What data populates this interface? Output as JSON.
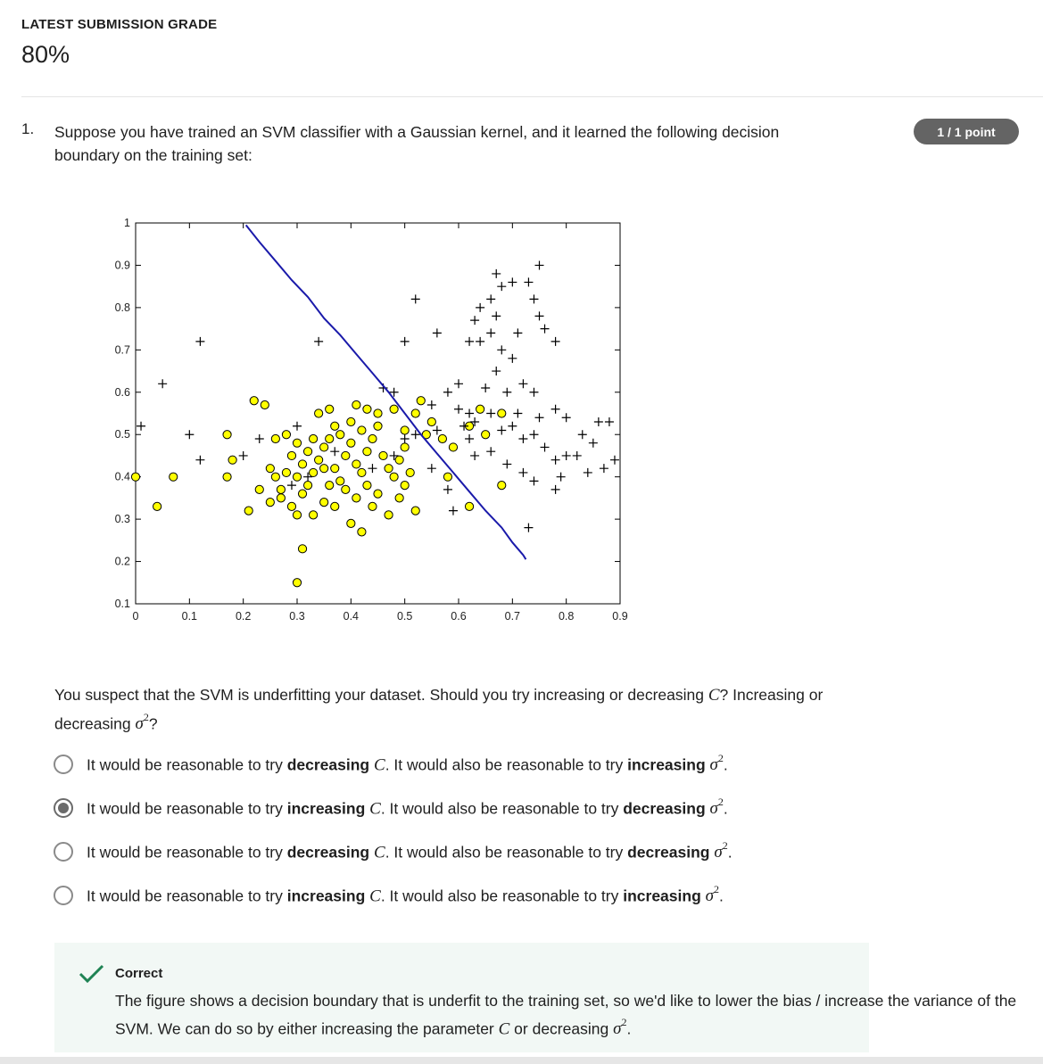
{
  "header": {
    "grade_label": "LATEST SUBMISSION GRADE",
    "grade_value": "80%"
  },
  "question": {
    "number": "1.",
    "text": "Suppose you have trained an SVM classifier with a Gaussian kernel, and it learned the following decision boundary on the training set:",
    "points_badge": "1 / 1 point"
  },
  "chart_data": {
    "type": "scatter",
    "xlim": [
      0,
      0.9
    ],
    "ylim": [
      0.1,
      1
    ],
    "x_ticks": [
      "0",
      "0.1",
      "0.2",
      "0.3",
      "0.4",
      "0.5",
      "0.6",
      "0.7",
      "0.8",
      "0.9"
    ],
    "y_ticks": [
      "0.1",
      "0.2",
      "0.3",
      "0.4",
      "0.5",
      "0.6",
      "0.7",
      "0.8",
      "0.9",
      "1"
    ],
    "negative_color": "#ffff00",
    "positive_color": "#000000",
    "boundary_color": "#1a1aaa",
    "boundary": [
      [
        0.205,
        0.995
      ],
      [
        0.23,
        0.955
      ],
      [
        0.26,
        0.91
      ],
      [
        0.29,
        0.865
      ],
      [
        0.32,
        0.825
      ],
      [
        0.35,
        0.775
      ],
      [
        0.38,
        0.735
      ],
      [
        0.41,
        0.69
      ],
      [
        0.44,
        0.645
      ],
      [
        0.47,
        0.6
      ],
      [
        0.5,
        0.55
      ],
      [
        0.53,
        0.5
      ],
      [
        0.56,
        0.455
      ],
      [
        0.59,
        0.41
      ],
      [
        0.62,
        0.365
      ],
      [
        0.65,
        0.32
      ],
      [
        0.68,
        0.28
      ],
      [
        0.7,
        0.245
      ],
      [
        0.72,
        0.215
      ],
      [
        0.725,
        0.205
      ]
    ],
    "negative_points": [
      [
        0.0,
        0.4
      ],
      [
        0.07,
        0.4
      ],
      [
        0.04,
        0.33
      ],
      [
        0.17,
        0.5
      ],
      [
        0.17,
        0.4
      ],
      [
        0.18,
        0.44
      ],
      [
        0.21,
        0.32
      ],
      [
        0.22,
        0.58
      ],
      [
        0.24,
        0.57
      ],
      [
        0.26,
        0.49
      ],
      [
        0.28,
        0.5
      ],
      [
        0.29,
        0.45
      ],
      [
        0.3,
        0.48
      ],
      [
        0.25,
        0.42
      ],
      [
        0.26,
        0.4
      ],
      [
        0.27,
        0.37
      ],
      [
        0.28,
        0.41
      ],
      [
        0.3,
        0.4
      ],
      [
        0.31,
        0.43
      ],
      [
        0.32,
        0.46
      ],
      [
        0.32,
        0.38
      ],
      [
        0.33,
        0.41
      ],
      [
        0.34,
        0.44
      ],
      [
        0.35,
        0.47
      ],
      [
        0.36,
        0.49
      ],
      [
        0.37,
        0.52
      ],
      [
        0.37,
        0.42
      ],
      [
        0.38,
        0.39
      ],
      [
        0.39,
        0.45
      ],
      [
        0.4,
        0.48
      ],
      [
        0.41,
        0.43
      ],
      [
        0.42,
        0.41
      ],
      [
        0.43,
        0.46
      ],
      [
        0.44,
        0.49
      ],
      [
        0.45,
        0.52
      ],
      [
        0.46,
        0.45
      ],
      [
        0.47,
        0.42
      ],
      [
        0.48,
        0.4
      ],
      [
        0.49,
        0.44
      ],
      [
        0.5,
        0.47
      ],
      [
        0.5,
        0.38
      ],
      [
        0.51,
        0.41
      ],
      [
        0.52,
        0.55
      ],
      [
        0.54,
        0.5
      ],
      [
        0.55,
        0.53
      ],
      [
        0.57,
        0.49
      ],
      [
        0.58,
        0.4
      ],
      [
        0.59,
        0.47
      ],
      [
        0.62,
        0.52
      ],
      [
        0.64,
        0.56
      ],
      [
        0.65,
        0.5
      ],
      [
        0.68,
        0.55
      ],
      [
        0.68,
        0.38
      ],
      [
        0.62,
        0.33
      ],
      [
        0.27,
        0.35
      ],
      [
        0.29,
        0.33
      ],
      [
        0.31,
        0.36
      ],
      [
        0.33,
        0.31
      ],
      [
        0.35,
        0.34
      ],
      [
        0.37,
        0.33
      ],
      [
        0.39,
        0.37
      ],
      [
        0.41,
        0.35
      ],
      [
        0.43,
        0.38
      ],
      [
        0.45,
        0.36
      ],
      [
        0.47,
        0.31
      ],
      [
        0.49,
        0.35
      ],
      [
        0.52,
        0.32
      ],
      [
        0.44,
        0.33
      ],
      [
        0.4,
        0.29
      ],
      [
        0.42,
        0.27
      ],
      [
        0.31,
        0.23
      ],
      [
        0.3,
        0.15
      ],
      [
        0.23,
        0.37
      ],
      [
        0.25,
        0.34
      ],
      [
        0.3,
        0.31
      ],
      [
        0.34,
        0.55
      ],
      [
        0.36,
        0.56
      ],
      [
        0.41,
        0.57
      ],
      [
        0.43,
        0.56
      ],
      [
        0.45,
        0.55
      ],
      [
        0.48,
        0.56
      ],
      [
        0.5,
        0.51
      ],
      [
        0.53,
        0.58
      ],
      [
        0.38,
        0.5
      ],
      [
        0.4,
        0.53
      ],
      [
        0.42,
        0.51
      ],
      [
        0.35,
        0.42
      ],
      [
        0.36,
        0.38
      ],
      [
        0.33,
        0.49
      ]
    ],
    "positive_points": [
      [
        0.05,
        0.62
      ],
      [
        0.12,
        0.72
      ],
      [
        0.01,
        0.52
      ],
      [
        0.1,
        0.5
      ],
      [
        0.12,
        0.44
      ],
      [
        0.2,
        0.45
      ],
      [
        0.23,
        0.49
      ],
      [
        0.3,
        0.52
      ],
      [
        0.34,
        0.72
      ],
      [
        0.46,
        0.61
      ],
      [
        0.48,
        0.6
      ],
      [
        0.5,
        0.72
      ],
      [
        0.52,
        0.82
      ],
      [
        0.56,
        0.74
      ],
      [
        0.58,
        0.6
      ],
      [
        0.6,
        0.62
      ],
      [
        0.6,
        0.56
      ],
      [
        0.61,
        0.52
      ],
      [
        0.62,
        0.49
      ],
      [
        0.63,
        0.45
      ],
      [
        0.62,
        0.72
      ],
      [
        0.63,
        0.77
      ],
      [
        0.64,
        0.8
      ],
      [
        0.66,
        0.82
      ],
      [
        0.67,
        0.78
      ],
      [
        0.68,
        0.85
      ],
      [
        0.67,
        0.88
      ],
      [
        0.7,
        0.86
      ],
      [
        0.71,
        0.74
      ],
      [
        0.73,
        0.86
      ],
      [
        0.74,
        0.82
      ],
      [
        0.75,
        0.78
      ],
      [
        0.76,
        0.75
      ],
      [
        0.75,
        0.9
      ],
      [
        0.78,
        0.72
      ],
      [
        0.74,
        0.6
      ],
      [
        0.72,
        0.62
      ],
      [
        0.7,
        0.68
      ],
      [
        0.68,
        0.7
      ],
      [
        0.66,
        0.74
      ],
      [
        0.64,
        0.72
      ],
      [
        0.71,
        0.55
      ],
      [
        0.74,
        0.5
      ],
      [
        0.76,
        0.47
      ],
      [
        0.78,
        0.44
      ],
      [
        0.8,
        0.45
      ],
      [
        0.82,
        0.45
      ],
      [
        0.83,
        0.5
      ],
      [
        0.85,
        0.48
      ],
      [
        0.86,
        0.53
      ],
      [
        0.88,
        0.53
      ],
      [
        0.89,
        0.44
      ],
      [
        0.87,
        0.42
      ],
      [
        0.84,
        0.41
      ],
      [
        0.79,
        0.4
      ],
      [
        0.78,
        0.37
      ],
      [
        0.74,
        0.39
      ],
      [
        0.72,
        0.41
      ],
      [
        0.69,
        0.43
      ],
      [
        0.66,
        0.46
      ],
      [
        0.63,
        0.53
      ],
      [
        0.66,
        0.55
      ],
      [
        0.68,
        0.51
      ],
      [
        0.7,
        0.52
      ],
      [
        0.72,
        0.49
      ],
      [
        0.75,
        0.54
      ],
      [
        0.78,
        0.56
      ],
      [
        0.8,
        0.54
      ],
      [
        0.55,
        0.42
      ],
      [
        0.58,
        0.37
      ],
      [
        0.59,
        0.32
      ],
      [
        0.73,
        0.28
      ],
      [
        0.55,
        0.57
      ],
      [
        0.52,
        0.5
      ],
      [
        0.5,
        0.49
      ],
      [
        0.44,
        0.42
      ],
      [
        0.37,
        0.46
      ],
      [
        0.32,
        0.4
      ],
      [
        0.29,
        0.38
      ],
      [
        0.48,
        0.45
      ],
      [
        0.65,
        0.61
      ],
      [
        0.67,
        0.65
      ],
      [
        0.69,
        0.6
      ],
      [
        0.62,
        0.55
      ],
      [
        0.56,
        0.51
      ]
    ]
  },
  "prompt": {
    "part1": "You suspect that the SVM is underfitting your dataset. Should you try increasing or decreasing ",
    "C": "C",
    "part2": "? Increasing or decreasing ",
    "sigma": "σ",
    "sup": "2",
    "part3": "?"
  },
  "options": [
    {
      "pre": "It would be reasonable to try ",
      "b1": "decreasing",
      "C": "C",
      "mid": ". It would also be reasonable to try ",
      "b2": "increasing",
      "sigma": "σ",
      "sup": "2",
      "end": ".",
      "selected": false
    },
    {
      "pre": "It would be reasonable to try ",
      "b1": "increasing",
      "C": "C",
      "mid": ". It would also be reasonable to try ",
      "b2": "decreasing",
      "sigma": "σ",
      "sup": "2",
      "end": ".",
      "selected": true
    },
    {
      "pre": "It would be reasonable to try ",
      "b1": "decreasing",
      "C": "C",
      "mid": ". It would also be reasonable to try ",
      "b2": "decreasing",
      "sigma": "σ",
      "sup": "2",
      "end": ".",
      "selected": false
    },
    {
      "pre": "It would be reasonable to try ",
      "b1": "increasing",
      "C": "C",
      "mid": ". It would also be reasonable to try ",
      "b2": "increasing",
      "sigma": "σ",
      "sup": "2",
      "end": ".",
      "selected": false
    }
  ],
  "feedback": {
    "title": "Correct",
    "part1": "The figure shows a decision boundary that is underfit to the training set, so we'd like to lower the bias / increase the variance of the SVM. We can do so by either increasing the parameter ",
    "C": "C",
    "part2": " or decreasing ",
    "sigma": "σ",
    "sup": "2",
    "end": ".",
    "check_color": "#1f8354"
  }
}
